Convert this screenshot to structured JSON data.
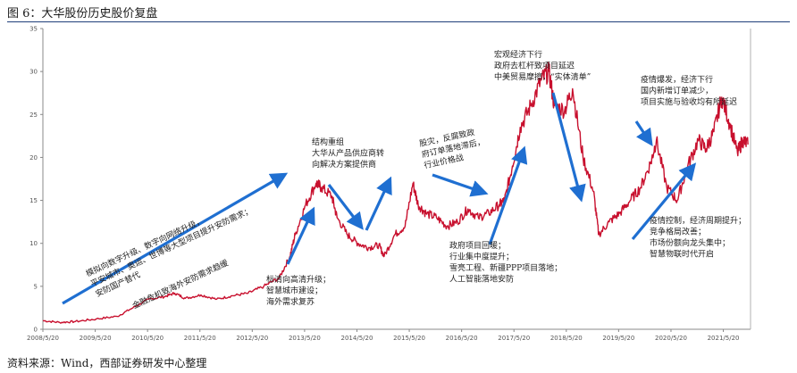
{
  "figure": {
    "title": "图 6：大华股份历史股价复盘",
    "source": "资料来源：Wind，西部证券研发中心整理"
  },
  "colors": {
    "line": "#c8102e",
    "arrow": "#1f6fd1",
    "axis": "#888888",
    "rule": "#1f3f7a"
  },
  "chart_data": {
    "type": "line",
    "title": "",
    "xlabel": "",
    "ylabel": "",
    "ylim": [
      0,
      35
    ],
    "yticks": [
      0,
      5,
      10,
      15,
      20,
      25,
      30,
      35
    ],
    "xticks": [
      "2008/5/20",
      "2009/5/20",
      "2010/5/20",
      "2011/5/20",
      "2012/5/20",
      "2013/5/20",
      "2014/5/20",
      "2015/5/20",
      "2016/5/20",
      "2017/5/20",
      "2018/5/20",
      "2019/5/20",
      "2020/5/20",
      "2021/5/20"
    ],
    "grid": false,
    "series": [
      {
        "name": "",
        "x": [
          2008.38,
          2008.7,
          2009.0,
          2009.4,
          2009.8,
          2010.1,
          2010.4,
          2010.7,
          2010.9,
          2011.1,
          2011.4,
          2011.7,
          2012.0,
          2012.3,
          2012.6,
          2012.9,
          2013.1,
          2013.2,
          2013.4,
          2013.6,
          2013.7,
          2013.9,
          2014.0,
          2014.2,
          2014.4,
          2014.6,
          2014.8,
          2014.9,
          2015.1,
          2015.3,
          2015.45,
          2015.55,
          2015.7,
          2015.9,
          2016.1,
          2016.3,
          2016.5,
          2016.7,
          2016.9,
          2017.1,
          2017.2,
          2017.35,
          2017.5,
          2017.7,
          2017.9,
          2018.05,
          2018.15,
          2018.35,
          2018.5,
          2018.7,
          2018.9,
          2019.0,
          2019.2,
          2019.4,
          2019.6,
          2019.8,
          2020.0,
          2020.1,
          2020.3,
          2020.5,
          2020.7,
          2020.9,
          2021.05,
          2021.2,
          2021.35,
          2021.5,
          2021.65,
          2021.75,
          2021.85
        ],
        "y": [
          1.0,
          0.8,
          0.9,
          1.2,
          1.5,
          2.5,
          3.5,
          3.8,
          4.2,
          3.6,
          4.0,
          3.5,
          3.9,
          4.2,
          5.0,
          6.0,
          8.5,
          11.0,
          14.5,
          17.0,
          16.5,
          15.5,
          13.0,
          11.0,
          10.0,
          9.5,
          9.8,
          8.5,
          11.0,
          12.0,
          17.0,
          14.5,
          13.5,
          13.0,
          12.0,
          12.5,
          14.0,
          13.0,
          13.5,
          14.5,
          15.0,
          19.0,
          23.5,
          26.0,
          29.0,
          30.0,
          26.0,
          25.5,
          28.0,
          20.0,
          16.0,
          11.0,
          12.5,
          13.5,
          15.0,
          16.5,
          19.5,
          22.0,
          16.5,
          15.0,
          19.0,
          22.0,
          21.0,
          23.0,
          27.0,
          24.0,
          20.5,
          22.0,
          21.5
        ]
      }
    ]
  },
  "annotations": [
    {
      "lines": [
        "模拟向数字升级、数字向网络升级，",
        "平安城市、奥运、世博等大型项目提升安防需求；",
        "安防国产替代"
      ]
    },
    {
      "lines": [
        "金融危机致海外安防需求趋缓"
      ]
    },
    {
      "lines": [
        "标清向高清升级；",
        "智慧城市建设；",
        "海外需求复苏"
      ]
    },
    {
      "lines": [
        "结构重组",
        "大华从产品供应商转",
        "向解决方案提供商"
      ]
    },
    {
      "lines": [
        "股灾，反腐致政",
        "府订单落地滞后，",
        "行业价格战"
      ]
    },
    {
      "lines": [
        "政府项目回暖；",
        "行业集中度提升；",
        "雪亮工程、新疆PPP项目落地；",
        "人工智能落地安防"
      ]
    },
    {
      "lines": [
        "宏观经济下行",
        "政府去杠杆致项目延迟",
        "中美贸易摩擦，“实体清单”"
      ]
    },
    {
      "lines": [
        "疫情爆发，经济下行",
        "国内新增订单减少，",
        "项目实施与验收均有所延迟"
      ]
    },
    {
      "lines": [
        "疫情控制，经济周期提升；",
        "竞争格局改善；",
        "市场份额向龙头集中；",
        "智慧物联时代开启"
      ]
    }
  ]
}
